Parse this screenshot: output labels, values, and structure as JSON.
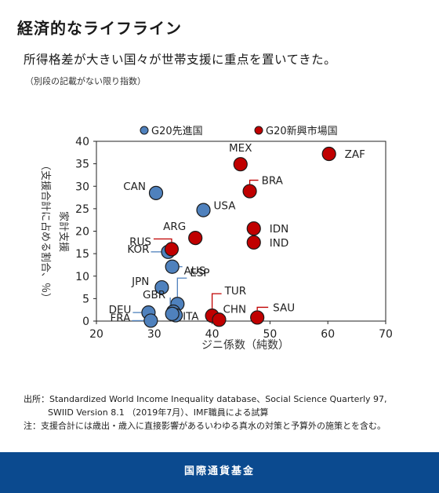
{
  "header": {
    "title": "経済的なライフライン",
    "subtitle": "所得格差が大きい国々が世帯支援に重点を置いてきた。",
    "note": "（別段の記載がない限り指数）"
  },
  "chart_data": {
    "type": "scatter",
    "xlabel": "ジニ係数（純数）",
    "ylabel": "家計支援（支援合計に占める割合、％）",
    "ylabel_lines": [
      "家計支援",
      "（支援合計に占める割合、％）"
    ],
    "xlim": [
      20,
      70
    ],
    "ylim": [
      0,
      40
    ],
    "x_ticks": [
      "20",
      "30",
      "40",
      "50",
      "60",
      "70"
    ],
    "y_ticks": [
      "0",
      "5",
      "10",
      "15",
      "20",
      "25",
      "30",
      "35",
      "40"
    ],
    "legend": {
      "placement": "top"
    },
    "series": [
      {
        "name": "G20先進国",
        "color": "#4f81bd",
        "points": [
          {
            "label": "CAN",
            "x": 30.3,
            "y": 28.5
          },
          {
            "label": "USA",
            "x": 38.5,
            "y": 24.7
          },
          {
            "label": "KOR",
            "x": 32.4,
            "y": 15.4
          },
          {
            "label": "AUS",
            "x": 33.1,
            "y": 12.1
          },
          {
            "label": "JPN",
            "x": 31.3,
            "y": 7.5
          },
          {
            "label": "ESP",
            "x": 34.0,
            "y": 3.8
          },
          {
            "label": "GBR",
            "x": 33.3,
            "y": 2.1
          },
          {
            "label": "DEU",
            "x": 29.0,
            "y": 1.9
          },
          {
            "label": "FRA",
            "x": 29.4,
            "y": 0.1
          },
          {
            "label": "ITA",
            "x": 33.7,
            "y": 1.3
          },
          {
            "label": "",
            "x": 33.1,
            "y": 1.6
          }
        ]
      },
      {
        "name": "G20新興市場国",
        "color": "#c00000",
        "points": [
          {
            "label": "ZAF",
            "x": 60.2,
            "y": 37.2
          },
          {
            "label": "MEX",
            "x": 44.9,
            "y": 34.9
          },
          {
            "label": "BRA",
            "x": 46.5,
            "y": 28.9
          },
          {
            "label": "ARG",
            "x": 37.1,
            "y": 18.5
          },
          {
            "label": "RUS",
            "x": 33.0,
            "y": 16.0
          },
          {
            "label": "IDN",
            "x": 47.2,
            "y": 20.6
          },
          {
            "label": "IND",
            "x": 47.2,
            "y": 17.5
          },
          {
            "label": "TUR",
            "x": 40.0,
            "y": 1.2
          },
          {
            "label": "CHN",
            "x": 41.2,
            "y": 0.3
          },
          {
            "label": "SAU",
            "x": 47.8,
            "y": 0.8
          }
        ]
      }
    ]
  },
  "source": {
    "line1": "出所：Standardized World Income Inequality database、Social Science Quarterly 97,",
    "line2": "SWIID Version 8.1 （2019年7月）、IMF職員による試算",
    "line3": "注：支援合計には歳出・歳入に直接影響があるいわゆる真水の対策と予算外の施策とを含む。"
  },
  "footer": {
    "text": "国際通貨基金"
  }
}
